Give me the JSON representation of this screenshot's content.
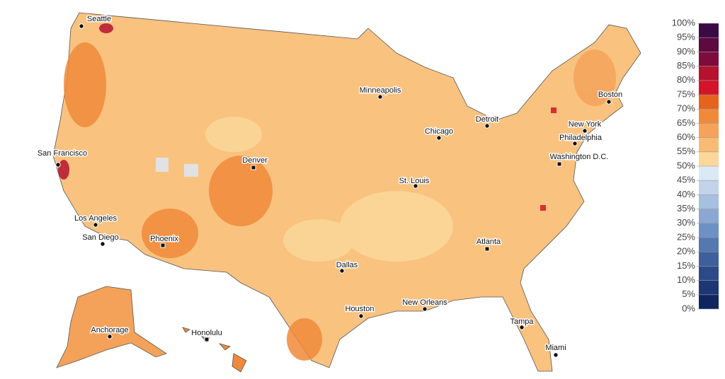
{
  "cities": [
    {
      "name": "Seattle"
    },
    {
      "name": "Minneapolis"
    },
    {
      "name": "Boston"
    },
    {
      "name": "Detroit"
    },
    {
      "name": "Chicago"
    },
    {
      "name": "New York"
    },
    {
      "name": "Philadelphia"
    },
    {
      "name": "San Francisco"
    },
    {
      "name": "Denver"
    },
    {
      "name": "Washington D.C."
    },
    {
      "name": "St. Louis"
    },
    {
      "name": "Los Angeles"
    },
    {
      "name": "San Diego"
    },
    {
      "name": "Phoenix"
    },
    {
      "name": "Atlanta"
    },
    {
      "name": "Dallas"
    },
    {
      "name": "Houston"
    },
    {
      "name": "New Orleans"
    },
    {
      "name": "Tampa"
    },
    {
      "name": "Miami"
    },
    {
      "name": "Anchorage"
    },
    {
      "name": "Honolulu"
    }
  ],
  "legend": {
    "ticks": [
      {
        "value": 0,
        "label": "0%"
      },
      {
        "value": 5,
        "label": "5%"
      },
      {
        "value": 10,
        "label": "10%"
      },
      {
        "value": 15,
        "label": "15%"
      },
      {
        "value": 20,
        "label": "20%"
      },
      {
        "value": 25,
        "label": "25%"
      },
      {
        "value": 30,
        "label": "30%"
      },
      {
        "value": 35,
        "label": "35%"
      },
      {
        "value": 40,
        "label": "40%"
      },
      {
        "value": 45,
        "label": "45%"
      },
      {
        "value": 50,
        "label": "50%"
      },
      {
        "value": 55,
        "label": "55%"
      },
      {
        "value": 60,
        "label": "60%"
      },
      {
        "value": 65,
        "label": "65%"
      },
      {
        "value": 70,
        "label": "70%"
      },
      {
        "value": 75,
        "label": "75%"
      },
      {
        "value": 80,
        "label": "80%"
      },
      {
        "value": 85,
        "label": "85%"
      },
      {
        "value": 90,
        "label": "90%"
      },
      {
        "value": 95,
        "label": "95%"
      },
      {
        "value": 100,
        "label": "100%"
      }
    ],
    "colors": [
      "#0f2560",
      "#1d3674",
      "#2c4a88",
      "#3e5f9c",
      "#5478b0",
      "#6e90c2",
      "#8aa8d2",
      "#a8c0e0",
      "#c3d4ea",
      "#dde8f5",
      "#fbd89a",
      "#f8bb74",
      "#f5a35a",
      "#f08a3a",
      "#e4641e",
      "#d3142a",
      "#b5122e",
      "#7d0b3c",
      "#5c0a40",
      "#3b0a45"
    ]
  }
}
